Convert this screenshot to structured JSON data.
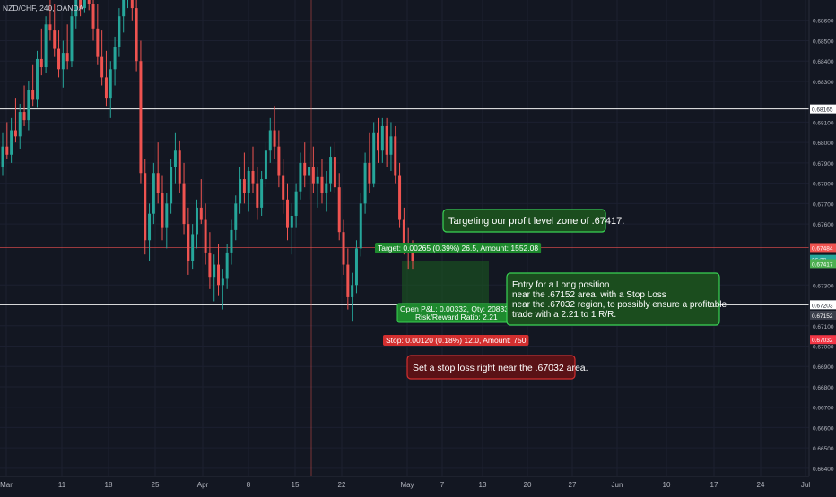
{
  "header": {
    "symbol_label": "NZD/CHF, 240, OANDA"
  },
  "chart_data": {
    "type": "candlestick",
    "symbol": "NZD/CHF",
    "interval": "240",
    "source": "OANDA",
    "y_range": [
      0.6636,
      0.687
    ],
    "y_ticks": [
      0.686,
      0.685,
      0.684,
      0.683,
      0.681,
      0.68,
      0.679,
      0.678,
      0.677,
      0.676,
      0.673,
      0.671,
      0.67,
      0.669,
      0.668,
      0.667,
      0.666,
      0.665,
      0.664
    ],
    "y_tick_labels": [
      "0.68600",
      "0.68500",
      "0.68400",
      "0.68300",
      "0.68100",
      "0.68000",
      "0.67900",
      "0.67800",
      "0.67700",
      "0.67600",
      "0.67300",
      "0.67100",
      "0.67000",
      "0.66900",
      "0.66800",
      "0.66700",
      "0.66600",
      "0.66500",
      "0.66400"
    ],
    "x_tick_labels": [
      "Mar",
      "11",
      "18",
      "25",
      "Apr",
      "8",
      "15",
      "22",
      "May",
      "7",
      "13",
      "20",
      "27",
      "Jun",
      "10",
      "17",
      "24",
      "Jul"
    ],
    "horizontal_levels": [
      {
        "price": 0.68165,
        "label": "0.68165",
        "color": "#ffffff"
      },
      {
        "price": 0.67203,
        "label": "0.67203",
        "color": "#ffffff"
      },
      {
        "price": 0.67484,
        "label": "0.67484",
        "color": "#ef5350"
      }
    ],
    "price_badges": [
      {
        "price": 0.67415,
        "label": "06:38",
        "color": "#26a69a"
      },
      {
        "price": 0.67417,
        "label": "0.67417",
        "color": "#4caf50"
      },
      {
        "price": 0.67152,
        "label": "0.67152",
        "color": "#3a3e4a"
      },
      {
        "price": 0.67032,
        "label": "0.67032",
        "color": "#f23645"
      }
    ],
    "position": {
      "side": "long",
      "entry": 0.67152,
      "target": 0.67417,
      "stop": 0.67032,
      "target_label": "Target: 0.00265 (0.39%) 26.5, Amount: 1552.08",
      "stop_label": "Stop: 0.00120 (0.18%) 12.0, Amount: 750",
      "pnl_label": "Open P&L: 0.00332, Qty: 208333",
      "rr_label": "Risk/Reward Ratio: 2.21"
    },
    "annotations": [
      {
        "text": "Targeting our profit level zone of .67417.",
        "color": "green"
      },
      {
        "text": [
          "Entry for a Long position",
          "near the .67152 area, with a Stop Loss",
          "near the .67032 region, to possibly ensure a profitable",
          "trade with a 2.21 to 1 R/R."
        ],
        "color": "green"
      },
      {
        "text": "Set a stop loss right near the .67032 area.",
        "color": "red"
      }
    ],
    "candles": [
      [
        0.6788,
        0.6805,
        0.6784,
        0.6798
      ],
      [
        0.6798,
        0.681,
        0.6792,
        0.6794
      ],
      [
        0.6794,
        0.6812,
        0.679,
        0.6806
      ],
      [
        0.6806,
        0.6822,
        0.68,
        0.6803
      ],
      [
        0.6803,
        0.6819,
        0.6797,
        0.6815
      ],
      [
        0.6815,
        0.6828,
        0.6808,
        0.6811
      ],
      [
        0.6811,
        0.683,
        0.6806,
        0.6826
      ],
      [
        0.6826,
        0.6838,
        0.6818,
        0.6821
      ],
      [
        0.6821,
        0.6845,
        0.6817,
        0.6841
      ],
      [
        0.6841,
        0.6856,
        0.6833,
        0.6837
      ],
      [
        0.6837,
        0.6862,
        0.6834,
        0.6858
      ],
      [
        0.6858,
        0.6872,
        0.685,
        0.6855
      ],
      [
        0.6855,
        0.6868,
        0.6842,
        0.6846
      ],
      [
        0.6846,
        0.6855,
        0.6832,
        0.6836
      ],
      [
        0.6836,
        0.685,
        0.6827,
        0.6844
      ],
      [
        0.6844,
        0.6858,
        0.6836,
        0.684
      ],
      [
        0.684,
        0.6866,
        0.6837,
        0.6862
      ],
      [
        0.6862,
        0.6878,
        0.6856,
        0.687
      ],
      [
        0.687,
        0.6885,
        0.6862,
        0.6866
      ],
      [
        0.6866,
        0.689,
        0.6864,
        0.6882
      ],
      [
        0.6882,
        0.689,
        0.6865,
        0.6868
      ],
      [
        0.6868,
        0.688,
        0.685,
        0.6856
      ],
      [
        0.6856,
        0.6868,
        0.6838,
        0.6842
      ],
      [
        0.6842,
        0.6855,
        0.6828,
        0.6832
      ],
      [
        0.6832,
        0.6845,
        0.6818,
        0.6822
      ],
      [
        0.6822,
        0.684,
        0.6812,
        0.6836
      ],
      [
        0.6836,
        0.6852,
        0.6828,
        0.6847
      ],
      [
        0.6847,
        0.6866,
        0.6842,
        0.6862
      ],
      [
        0.6862,
        0.688,
        0.6854,
        0.6874
      ],
      [
        0.6874,
        0.689,
        0.6866,
        0.6884
      ],
      [
        0.6884,
        0.689,
        0.686,
        0.6866
      ],
      [
        0.6866,
        0.6872,
        0.6835,
        0.684
      ],
      [
        0.684,
        0.685,
        0.678,
        0.6785
      ],
      [
        0.6785,
        0.6792,
        0.6745,
        0.6752
      ],
      [
        0.6752,
        0.677,
        0.6742,
        0.6765
      ],
      [
        0.6765,
        0.679,
        0.676,
        0.6785
      ],
      [
        0.6785,
        0.68,
        0.677,
        0.6775
      ],
      [
        0.6775,
        0.6784,
        0.6752,
        0.6758
      ],
      [
        0.6758,
        0.6775,
        0.6748,
        0.677
      ],
      [
        0.677,
        0.6792,
        0.6765,
        0.6788
      ],
      [
        0.6788,
        0.6805,
        0.678,
        0.6796
      ],
      [
        0.6796,
        0.6801,
        0.6775,
        0.678
      ],
      [
        0.678,
        0.679,
        0.6755,
        0.676
      ],
      [
        0.676,
        0.6768,
        0.6735,
        0.6742
      ],
      [
        0.6742,
        0.676,
        0.6738,
        0.6755
      ],
      [
        0.6755,
        0.6772,
        0.6748,
        0.6768
      ],
      [
        0.6768,
        0.6782,
        0.676,
        0.6762
      ],
      [
        0.6762,
        0.677,
        0.674,
        0.6746
      ],
      [
        0.6746,
        0.6756,
        0.6728,
        0.6734
      ],
      [
        0.6734,
        0.6745,
        0.6722,
        0.674
      ],
      [
        0.674,
        0.675,
        0.6725,
        0.673
      ],
      [
        0.673,
        0.6738,
        0.6718,
        0.6733
      ],
      [
        0.6733,
        0.675,
        0.6728,
        0.6746
      ],
      [
        0.6746,
        0.6762,
        0.674,
        0.6757
      ],
      [
        0.6757,
        0.6774,
        0.6752,
        0.677
      ],
      [
        0.677,
        0.6788,
        0.6765,
        0.6782
      ],
      [
        0.6782,
        0.6795,
        0.677,
        0.6775
      ],
      [
        0.6775,
        0.6788,
        0.6766,
        0.6786
      ],
      [
        0.6786,
        0.6798,
        0.6775,
        0.678
      ],
      [
        0.678,
        0.6788,
        0.6762,
        0.6768
      ],
      [
        0.6768,
        0.6786,
        0.6764,
        0.6782
      ],
      [
        0.6782,
        0.68,
        0.6778,
        0.6796
      ],
      [
        0.6796,
        0.6812,
        0.679,
        0.6806
      ],
      [
        0.6806,
        0.6818,
        0.6792,
        0.6798
      ],
      [
        0.6798,
        0.6806,
        0.6778,
        0.6784
      ],
      [
        0.6784,
        0.6792,
        0.6765,
        0.6772
      ],
      [
        0.6772,
        0.678,
        0.6752,
        0.6758
      ],
      [
        0.6758,
        0.677,
        0.6745,
        0.6764
      ],
      [
        0.6764,
        0.678,
        0.6758,
        0.6776
      ],
      [
        0.6776,
        0.6795,
        0.6772,
        0.679
      ],
      [
        0.679,
        0.68,
        0.6778,
        0.6784
      ],
      [
        0.6784,
        0.6795,
        0.6772,
        0.6788
      ],
      [
        0.6788,
        0.6798,
        0.6775,
        0.678
      ],
      [
        0.678,
        0.6788,
        0.6768,
        0.6783
      ],
      [
        0.6783,
        0.6792,
        0.677,
        0.6775
      ],
      [
        0.6775,
        0.6786,
        0.6766,
        0.678
      ],
      [
        0.678,
        0.6798,
        0.6776,
        0.6793
      ],
      [
        0.6793,
        0.68,
        0.6775,
        0.6778
      ],
      [
        0.6778,
        0.6785,
        0.6752,
        0.6756
      ],
      [
        0.6756,
        0.6762,
        0.6735,
        0.674
      ],
      [
        0.674,
        0.6748,
        0.6718,
        0.6724
      ],
      [
        0.6724,
        0.6736,
        0.6712,
        0.673
      ],
      [
        0.673,
        0.6752,
        0.6726,
        0.6748
      ],
      [
        0.6748,
        0.6775,
        0.6744,
        0.677
      ],
      [
        0.677,
        0.6795,
        0.6765,
        0.679
      ],
      [
        0.679,
        0.6805,
        0.6775,
        0.678
      ],
      [
        0.678,
        0.681,
        0.6778,
        0.6805
      ],
      [
        0.6805,
        0.6812,
        0.679,
        0.6796
      ],
      [
        0.6796,
        0.6812,
        0.679,
        0.6808
      ],
      [
        0.6808,
        0.6812,
        0.6788,
        0.6794
      ],
      [
        0.6794,
        0.681,
        0.6786,
        0.6803
      ],
      [
        0.6803,
        0.6808,
        0.678,
        0.6784
      ],
      [
        0.6784,
        0.679,
        0.6758,
        0.6762
      ],
      [
        0.6762,
        0.6768,
        0.6745,
        0.675
      ],
      [
        0.675,
        0.6758,
        0.6738,
        0.6746
      ],
      [
        0.6746,
        0.6752,
        0.6738,
        0.6742
      ]
    ]
  }
}
